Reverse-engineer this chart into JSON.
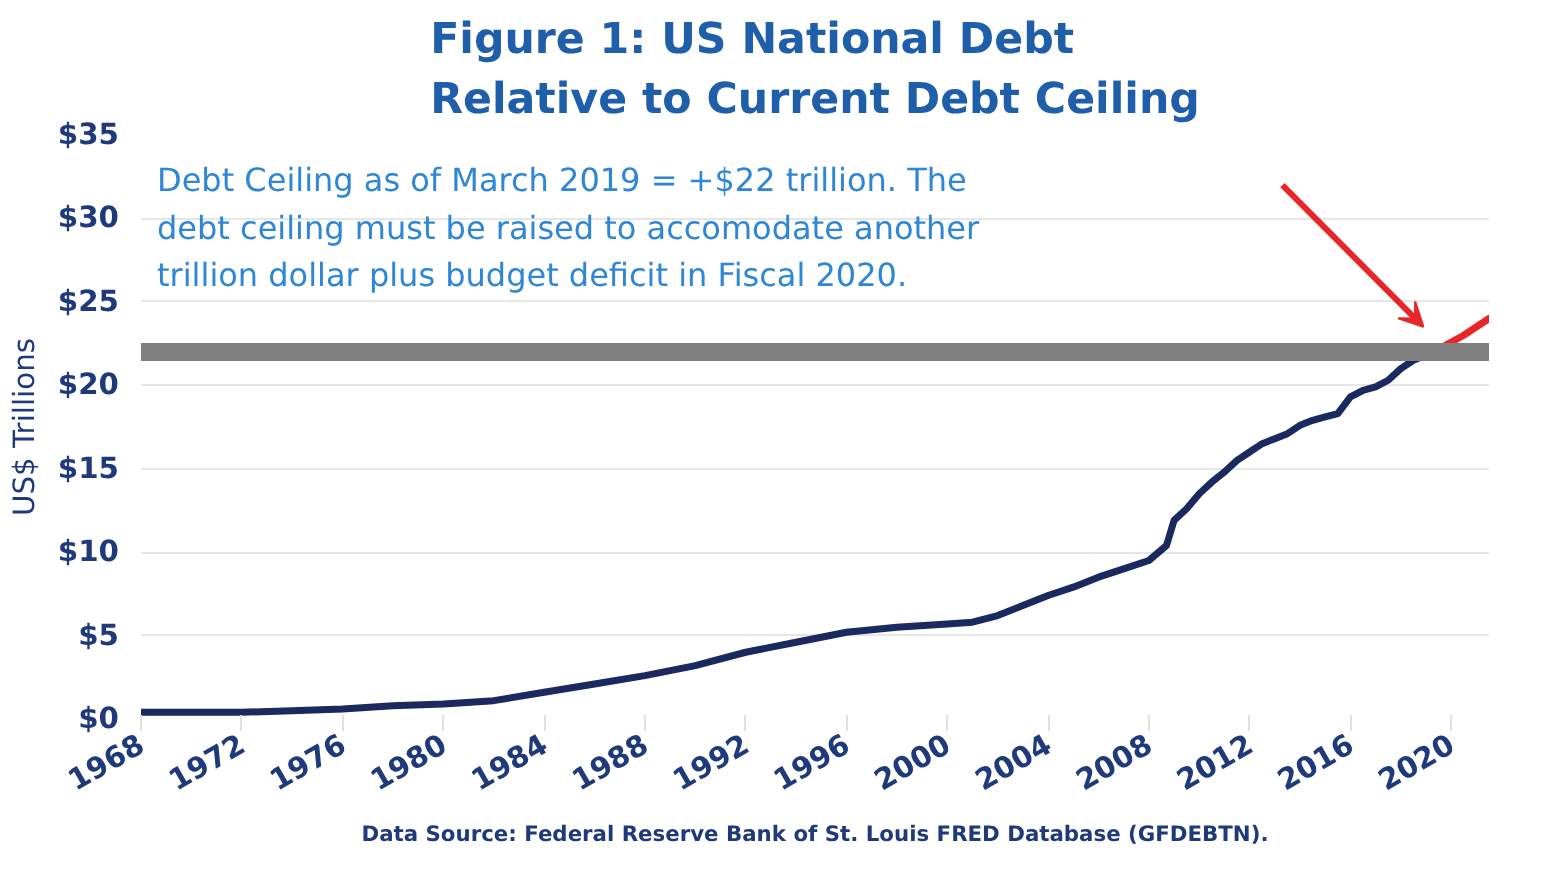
{
  "chart_data": {
    "type": "line",
    "title": "Figure 1: US National Debt\nRelative to Current Debt Ceiling",
    "ylabel": "US$ Trillions",
    "annotations": [
      "Debt Ceiling as of March 2019 = +$22 trillion.  The\ndebt ceiling must be raised to accomodate another\ntrillion dollar plus budget deficit in Fiscal 2020.",
      "Data Source: Federal Reserve Bank of St. Louis FRED Database (GFDEBTN)."
    ],
    "series": [
      {
        "color": "#1b2a5e",
        "x": [
          1968,
          1970,
          1972,
          1974,
          1976,
          1978,
          1980,
          1982,
          1984,
          1986,
          1988,
          1990,
          1992,
          1994,
          1996,
          1998,
          2000,
          2001,
          2002,
          2003,
          2004,
          2005,
          2006,
          2007,
          2008,
          2008.7,
          2009,
          2009.5,
          2010,
          2010.5,
          2011,
          2011.5,
          2012,
          2012.5,
          2013,
          2013.5,
          2014,
          2014.5,
          2015,
          2015.5,
          2016,
          2016.5,
          2017,
          2017.5,
          2018,
          2018.5,
          2019.3
        ],
        "values": [
          0.4,
          0.4,
          0.4,
          0.5,
          0.6,
          0.8,
          0.9,
          1.1,
          1.6,
          2.1,
          2.6,
          3.2,
          4.0,
          4.6,
          5.2,
          5.5,
          5.7,
          5.8,
          6.2,
          6.8,
          7.4,
          7.9,
          8.5,
          9.0,
          9.5,
          10.4,
          11.9,
          12.6,
          13.5,
          14.2,
          14.8,
          15.5,
          16.0,
          16.5,
          16.8,
          17.1,
          17.6,
          17.9,
          18.1,
          18.3,
          19.3,
          19.7,
          19.9,
          20.3,
          21.0,
          21.5,
          22.0
        ]
      },
      {
        "color": "#e8262a",
        "x": [
          2019.3,
          2020.5,
          2021.5
        ],
        "values": [
          22.0,
          23.0,
          24.0
        ]
      }
    ],
    "xlim": [
      1968,
      2021.5
    ],
    "xticks": [
      1968,
      1972,
      1976,
      1980,
      1984,
      1988,
      1992,
      1996,
      2000,
      2004,
      2008,
      2012,
      2016,
      2020
    ],
    "ylim": [
      0,
      35
    ],
    "yticks": [
      {
        "value": 0,
        "label": "$0"
      },
      {
        "value": 5,
        "label": "$5"
      },
      {
        "value": 10,
        "label": "$10"
      },
      {
        "value": 15,
        "label": "$15"
      },
      {
        "value": 20,
        "label": "$20"
      },
      {
        "value": 25,
        "label": "$25"
      },
      {
        "value": 30,
        "label": "$30"
      },
      {
        "value": 35,
        "label": "$35"
      }
    ],
    "ref_lines": [
      {
        "axis": "y",
        "value": 22,
        "color": "#808080"
      }
    ],
    "grid": "y"
  }
}
